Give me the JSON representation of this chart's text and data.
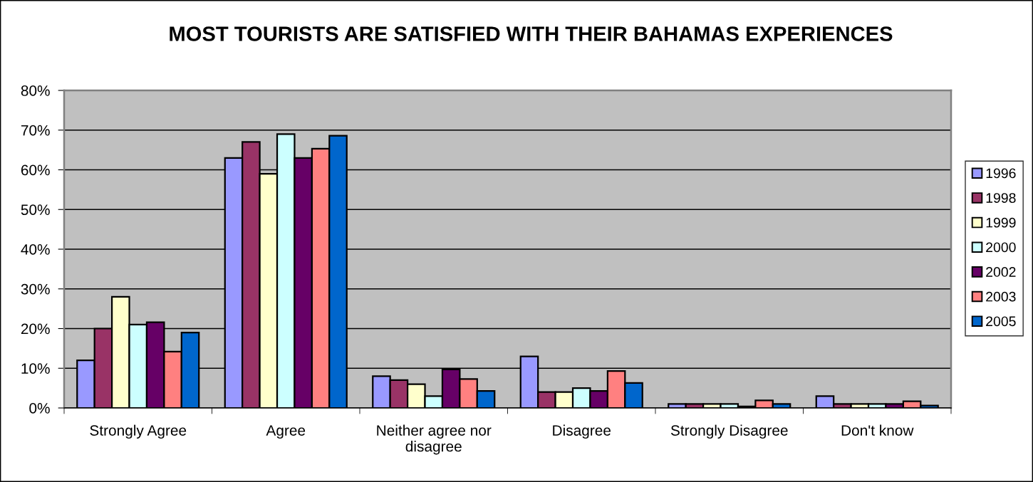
{
  "chart_data": {
    "type": "bar",
    "title": "MOST TOURISTS ARE SATISFIED WITH THEIR BAHAMAS EXPERIENCES",
    "categories": [
      "Strongly Agree",
      "Agree",
      "Neither agree nor\ndisagree",
      "Disagree",
      "Strongly Disagree",
      "Don't know"
    ],
    "series": [
      {
        "name": "1996",
        "color": "#9999ff",
        "values": [
          12,
          63,
          8,
          13,
          1,
          3
        ]
      },
      {
        "name": "1998",
        "color": "#993366",
        "values": [
          20,
          67,
          7,
          4,
          1,
          1
        ]
      },
      {
        "name": "1999",
        "color": "#ffffcc",
        "values": [
          28,
          59,
          6,
          4,
          1,
          1
        ]
      },
      {
        "name": "2000",
        "color": "#ccffff",
        "values": [
          21,
          69,
          3,
          5,
          1,
          1
        ]
      },
      {
        "name": "2002",
        "color": "#660066",
        "values": [
          21.6,
          63,
          9.7,
          4.3,
          0.4,
          1
        ]
      },
      {
        "name": "2003",
        "color": "#ff8080",
        "values": [
          14.2,
          65.3,
          7.3,
          9.3,
          1.9,
          1.7
        ]
      },
      {
        "name": "2005",
        "color": "#0066cc",
        "values": [
          19,
          68.6,
          4.3,
          6.3,
          1,
          0.6
        ]
      }
    ],
    "ylim": [
      0,
      80
    ],
    "yticks": [
      {
        "value": 0,
        "label": "0%"
      },
      {
        "value": 10,
        "label": "10%"
      },
      {
        "value": 20,
        "label": "20%"
      },
      {
        "value": 30,
        "label": "30%"
      },
      {
        "value": 40,
        "label": "40%"
      },
      {
        "value": 50,
        "label": "50%"
      },
      {
        "value": 60,
        "label": "60%"
      },
      {
        "value": 70,
        "label": "70%"
      },
      {
        "value": 80,
        "label": "80%"
      }
    ],
    "grid": "y",
    "legend": "right"
  }
}
